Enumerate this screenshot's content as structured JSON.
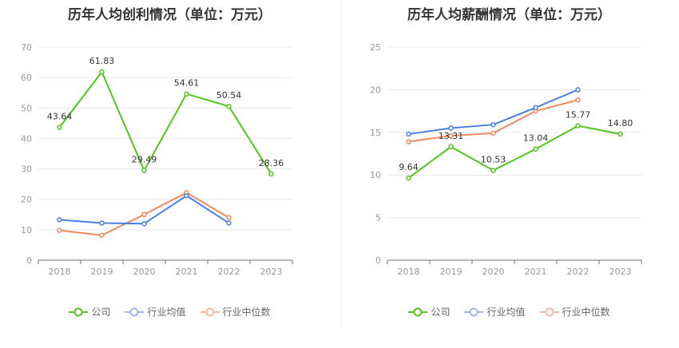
{
  "legend": [
    {
      "label": "公司",
      "color": "#52c41a"
    },
    {
      "label": "行业均值",
      "color": "#4a7ee0"
    },
    {
      "label": "行业中位数",
      "color": "#f08860"
    }
  ],
  "chart_data": [
    {
      "type": "line",
      "title": "历年人均创利情况（单位：万元）",
      "categories": [
        "2018",
        "2019",
        "2020",
        "2021",
        "2022",
        "2023"
      ],
      "ylim": [
        0,
        70
      ],
      "yticks": [
        0,
        10,
        20,
        30,
        40,
        50,
        60,
        70
      ],
      "grid": true,
      "legend_position": "bottom",
      "series": [
        {
          "name": "公司",
          "color": "#52c41a",
          "values": [
            43.64,
            61.83,
            29.49,
            54.61,
            50.54,
            28.36
          ],
          "labels": [
            "43.64",
            "61.83",
            "29.49",
            "54.61",
            "50.54",
            "28.36"
          ]
        },
        {
          "name": "行业均值",
          "color": "#4a7ee0",
          "values": [
            13.3,
            12.2,
            12.0,
            21.2,
            12.2,
            null
          ]
        },
        {
          "name": "行业中位数",
          "color": "#f08860",
          "values": [
            9.8,
            8.2,
            15.0,
            22.2,
            14.0,
            null
          ]
        }
      ]
    },
    {
      "type": "line",
      "title": "历年人均薪酬情况（单位：万元）",
      "categories": [
        "2018",
        "2019",
        "2020",
        "2021",
        "2022",
        "2023"
      ],
      "ylim": [
        0,
        25
      ],
      "yticks": [
        0,
        5,
        10,
        15,
        20,
        25
      ],
      "grid": true,
      "legend_position": "bottom",
      "series": [
        {
          "name": "公司",
          "color": "#52c41a",
          "values": [
            9.64,
            13.31,
            10.53,
            13.04,
            15.77,
            14.8
          ],
          "labels": [
            "9.64",
            "13.31",
            "10.53",
            "13.04",
            "15.77",
            "14.80"
          ]
        },
        {
          "name": "行业均值",
          "color": "#4a7ee0",
          "values": [
            14.8,
            15.5,
            15.9,
            17.9,
            20.0,
            null
          ]
        },
        {
          "name": "行业中位数",
          "color": "#f08860",
          "values": [
            13.9,
            14.6,
            14.9,
            17.5,
            18.8,
            null
          ]
        }
      ]
    }
  ]
}
